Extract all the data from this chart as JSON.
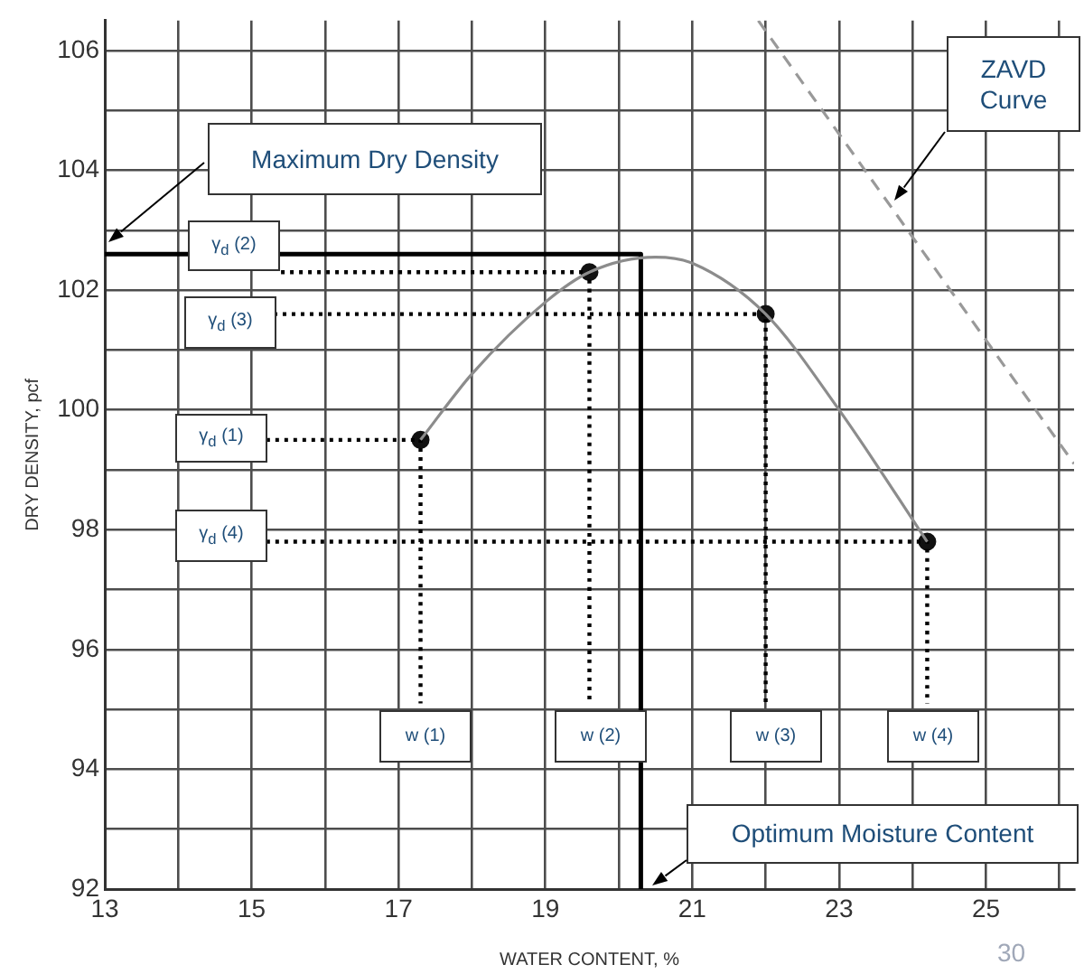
{
  "chart_data": {
    "type": "line",
    "xlabel": "WATER CONTENT, %",
    "ylabel": "DRY DENSITY, pcf",
    "xlim": [
      13,
      26.2
    ],
    "ylim": [
      92,
      106.5
    ],
    "xticks": [
      13,
      {
        "value": 14,
        "label": null
      },
      15,
      {
        "value": 16,
        "label": null
      },
      17,
      {
        "value": 18,
        "label": null
      },
      19,
      {
        "value": 20,
        "label": null
      },
      21,
      {
        "value": 22,
        "label": null
      },
      23,
      {
        "value": 24,
        "label": null
      },
      25,
      {
        "value": 26,
        "label": null
      }
    ],
    "yticks": [
      92,
      {
        "value": 93,
        "label": null
      },
      94,
      {
        "value": 95,
        "label": null
      },
      96,
      {
        "value": 97,
        "label": null
      },
      98,
      {
        "value": 99,
        "label": null
      },
      100,
      {
        "value": 101,
        "label": null
      },
      102,
      {
        "value": 103,
        "label": null
      },
      104,
      {
        "value": 105,
        "label": null
      },
      106
    ],
    "grid": true,
    "legend": false,
    "series": [
      {
        "color": "#8c8c8c",
        "marker": "none",
        "line_style": "solid",
        "x": [
          17.3,
          18,
          19,
          19.6,
          20.5,
          21,
          22,
          23,
          24.2
        ],
        "values": [
          99.5,
          100.6,
          101.8,
          102.3,
          102.55,
          102.45,
          101.6,
          100,
          97.8
        ]
      },
      {
        "color": "#999999",
        "marker": "none",
        "line_style": "dashed",
        "x": [
          21.9,
          26.2
        ],
        "values": [
          106.5,
          99.1
        ]
      },
      {
        "color": "#000000",
        "marker": "none",
        "line_style": "solid",
        "x": [
          13,
          20.3,
          20.3
        ],
        "values": [
          102.6,
          102.6,
          92
        ]
      },
      {
        "color": "#000000",
        "marker": "none",
        "line_style": "dotted",
        "x": [
          15.2,
          17.3,
          17.3
        ],
        "values": [
          99.5,
          99.5,
          95.1
        ]
      },
      {
        "color": "#000000",
        "marker": "none",
        "line_style": "dotted",
        "x": [
          15.4,
          19.6,
          19.6
        ],
        "values": [
          102.3,
          102.3,
          95.1
        ]
      },
      {
        "color": "#000000",
        "marker": "none",
        "line_style": "dotted",
        "x": [
          15.3,
          22,
          22
        ],
        "values": [
          101.6,
          101.6,
          95.1
        ]
      },
      {
        "color": "#000000",
        "marker": "none",
        "line_style": "dotted",
        "x": [
          15.2,
          24.2,
          24.2
        ],
        "values": [
          97.8,
          97.8,
          95.1
        ]
      },
      {
        "type": "scatter",
        "color": "#111111",
        "marker": "circle",
        "x": [
          17.3,
          19.6,
          22,
          24.2
        ],
        "values": [
          99.5,
          102.3,
          101.6,
          97.8
        ]
      }
    ],
    "annotations": [
      "Maximum Dry Density",
      "Optimum Moisture Content",
      "ZAVD Curve",
      "γ$_{d}$ (1)",
      "γ$_{d}$ (2)",
      "γ$_{d}$ (3)",
      "γ$_{d}$ (4)",
      "w (1)",
      "w (2)",
      "w (3)",
      "w (4)",
      "30"
    ]
  }
}
